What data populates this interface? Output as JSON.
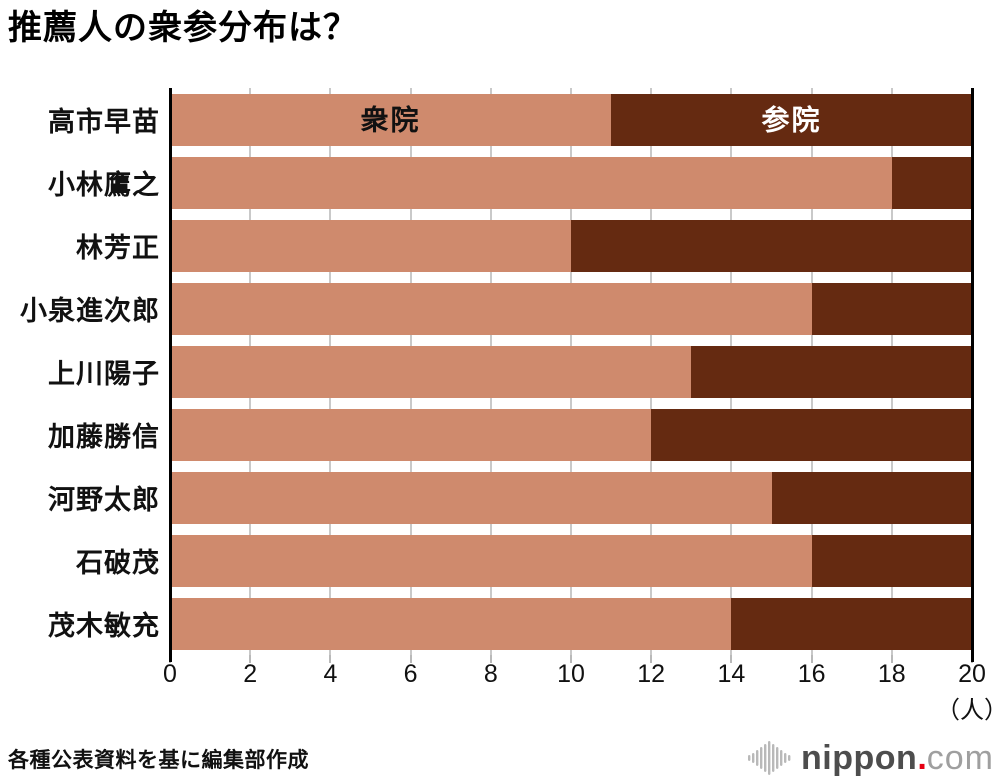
{
  "title": "推薦人の衆参分布は？",
  "source": "各種公表資料を基に編集部作成",
  "logo": {
    "name": "nippon",
    "dot": ".",
    "tld": "com",
    "icon": "soundwave-icon",
    "dot_color": "#e60012"
  },
  "chart_data": {
    "type": "bar",
    "orientation": "horizontal",
    "stacked": true,
    "title": "推薦人の衆参分布は？",
    "categories": [
      "高市早苗",
      "小林鷹之",
      "林芳正",
      "小泉進次郎",
      "上川陽子",
      "加藤勝信",
      "河野太郎",
      "石破茂",
      "茂木敏充"
    ],
    "series": [
      {
        "name": "衆院",
        "color": "#cf8a6d",
        "label_color": "#111111",
        "values": [
          11,
          18,
          10,
          16,
          13,
          12,
          15,
          16,
          14
        ]
      },
      {
        "name": "参院",
        "color": "#652a11",
        "label_color": "#ffffff",
        "values": [
          9,
          2,
          10,
          4,
          7,
          8,
          5,
          4,
          6
        ]
      }
    ],
    "xlim": [
      0,
      20
    ],
    "xticks": [
      0,
      2,
      4,
      6,
      8,
      10,
      12,
      14,
      16,
      18,
      20
    ],
    "x_unit": "（人）",
    "grid": true,
    "gridline_color": "#c9c9c9",
    "legend_position": "inside-first-bar"
  }
}
